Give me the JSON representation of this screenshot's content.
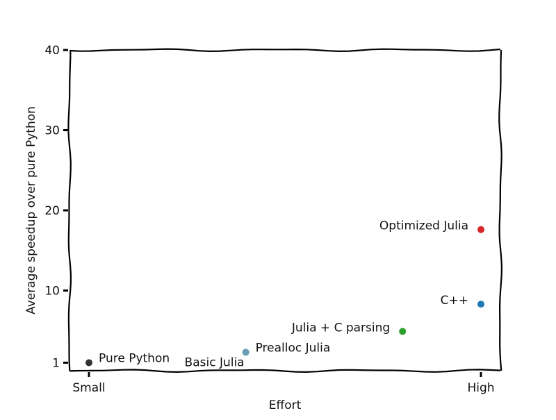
{
  "chart_data": {
    "type": "scatter",
    "title": "",
    "xlabel": "Effort",
    "ylabel": "Average speedup over pure Python",
    "xlim": [
      -0.05,
      1.05
    ],
    "ylim": [
      0,
      40
    ],
    "grid": false,
    "xticks": [
      {
        "value": 0,
        "label": "Small"
      },
      {
        "value": 1,
        "label": "High"
      }
    ],
    "yticks": [
      {
        "value": 1,
        "label": "1"
      },
      {
        "value": 10,
        "label": "10"
      },
      {
        "value": 20,
        "label": "20"
      },
      {
        "value": 30,
        "label": "30"
      },
      {
        "value": 40,
        "label": "40"
      }
    ],
    "points": [
      {
        "name": "Pure Python",
        "label": "Pure Python",
        "x": 0.0,
        "y": 1.0,
        "color": "#333333",
        "label_side": "right"
      },
      {
        "name": "Basic Julia",
        "label": "Basic Julia",
        "x": 0.4,
        "y": 2.3,
        "color": "#6c9fb5",
        "label_side": "below-left"
      },
      {
        "name": "Prealloc Julia",
        "label": "Prealloc Julia",
        "x": 0.4,
        "y": 2.3,
        "color": "#6c9fb5",
        "label_side": "right"
      },
      {
        "name": "Julia + C parsing",
        "label": "Julia + C parsing",
        "x": 0.8,
        "y": 4.9,
        "color": "#2ca02c",
        "label_side": "left"
      },
      {
        "name": "C++",
        "label": "C++",
        "x": 1.0,
        "y": 8.3,
        "color": "#1f77b4",
        "label_side": "left"
      },
      {
        "name": "Optimized Julia",
        "label": "Optimized Julia",
        "x": 1.0,
        "y": 17.6,
        "color": "#d62728",
        "label_side": "left"
      }
    ]
  }
}
